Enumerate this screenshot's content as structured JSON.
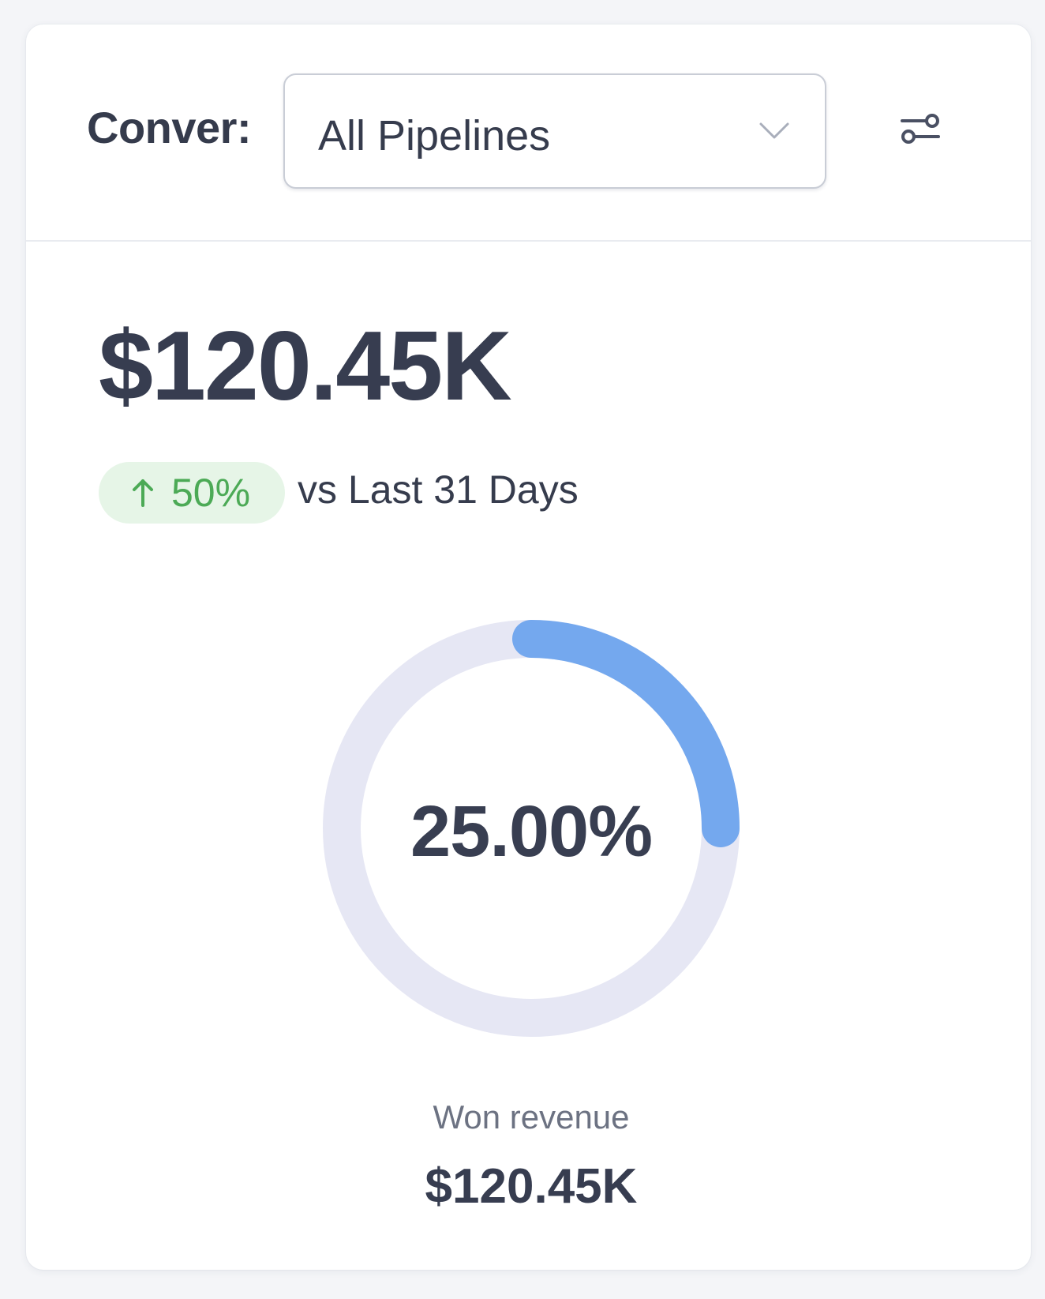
{
  "filter": {
    "label": "Conver:",
    "selected": "All Pipelines"
  },
  "metric": {
    "value": "$120.45K",
    "change_badge": "50%",
    "change_direction": "up",
    "comparison_text": "vs Last 31 Days"
  },
  "donut": {
    "percent_label": "25.00%",
    "percent_value": 25,
    "track_color": "#e6e7f4",
    "fill_color": "#74a8ee"
  },
  "won": {
    "label": "Won revenue",
    "value": "$120.45K"
  },
  "colors": {
    "positive": "#4caa56",
    "positive_bg": "#e6f5e7"
  },
  "icons": {
    "dropdown": "chevron-down-icon",
    "filter": "sliders-icon",
    "trend": "arrow-up-icon"
  }
}
